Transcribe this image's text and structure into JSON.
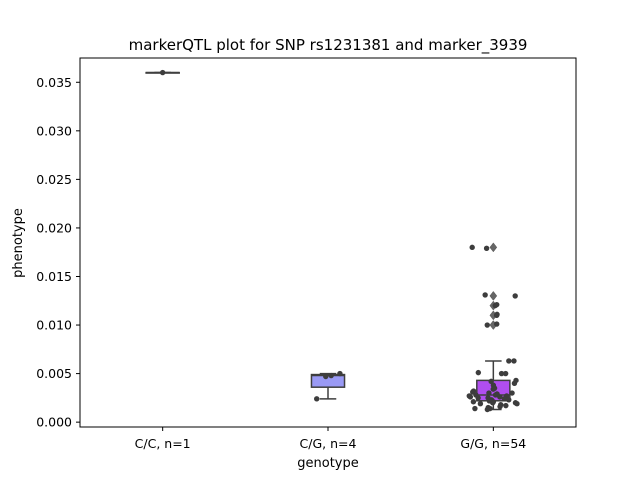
{
  "chart_data": {
    "type": "box",
    "title": "markerQTL plot for SNP rs1231381 and marker_3939",
    "xlabel": "genotype",
    "ylabel": "phenotype",
    "ylim": [
      -0.0005,
      0.0375
    ],
    "yticks": [
      0.0,
      0.005,
      0.01,
      0.015,
      0.02,
      0.025,
      0.03,
      0.035
    ],
    "ytick_labels": [
      "0.000",
      "0.005",
      "0.010",
      "0.015",
      "0.020",
      "0.025",
      "0.030",
      "0.035"
    ],
    "grid": false,
    "categories": [
      "C/C, n=1",
      "C/G, n=4",
      "G/G, n=54"
    ],
    "boxes": [
      {
        "category": "C/C, n=1",
        "color": "#6e6e8c",
        "min": 0.036,
        "q1": 0.036,
        "median": 0.036,
        "q3": 0.036,
        "max": 0.036,
        "outliers": []
      },
      {
        "category": "C/G, n=4",
        "color": "#9a9af5",
        "min": 0.0024,
        "q1": 0.0036,
        "median": 0.0048,
        "q3": 0.0049,
        "max": 0.005,
        "outliers": []
      },
      {
        "category": "G/G, n=54",
        "color": "#b04ef0",
        "min": 0.0013,
        "q1": 0.0022,
        "median": 0.0028,
        "q3": 0.0043,
        "max": 0.0063,
        "outliers": [
          0.018,
          0.013,
          0.012,
          0.011,
          0.01
        ]
      }
    ],
    "points": [
      {
        "category": "C/C, n=1",
        "values": [
          0.036
        ]
      },
      {
        "category": "C/G, n=4",
        "values": [
          0.005,
          0.0048,
          0.0047,
          0.0024
        ]
      },
      {
        "category": "G/G, n=54",
        "values": [
          0.018,
          0.0179,
          0.0131,
          0.013,
          0.012,
          0.0121,
          0.011,
          0.0111,
          0.0101,
          0.01,
          0.0063,
          0.0063,
          0.0051,
          0.005,
          0.005,
          0.0043,
          0.0042,
          0.004,
          0.0038,
          0.0035,
          0.0034,
          0.0032,
          0.0031,
          0.003,
          0.003,
          0.0029,
          0.0028,
          0.0028,
          0.0027,
          0.0027,
          0.0026,
          0.0026,
          0.0025,
          0.0025,
          0.0024,
          0.0024,
          0.0023,
          0.0023,
          0.0022,
          0.0022,
          0.0022,
          0.0021,
          0.0021,
          0.002,
          0.002,
          0.0019,
          0.0019,
          0.0018,
          0.0017,
          0.0016,
          0.0015,
          0.0014,
          0.0014,
          0.0013
        ]
      }
    ]
  }
}
